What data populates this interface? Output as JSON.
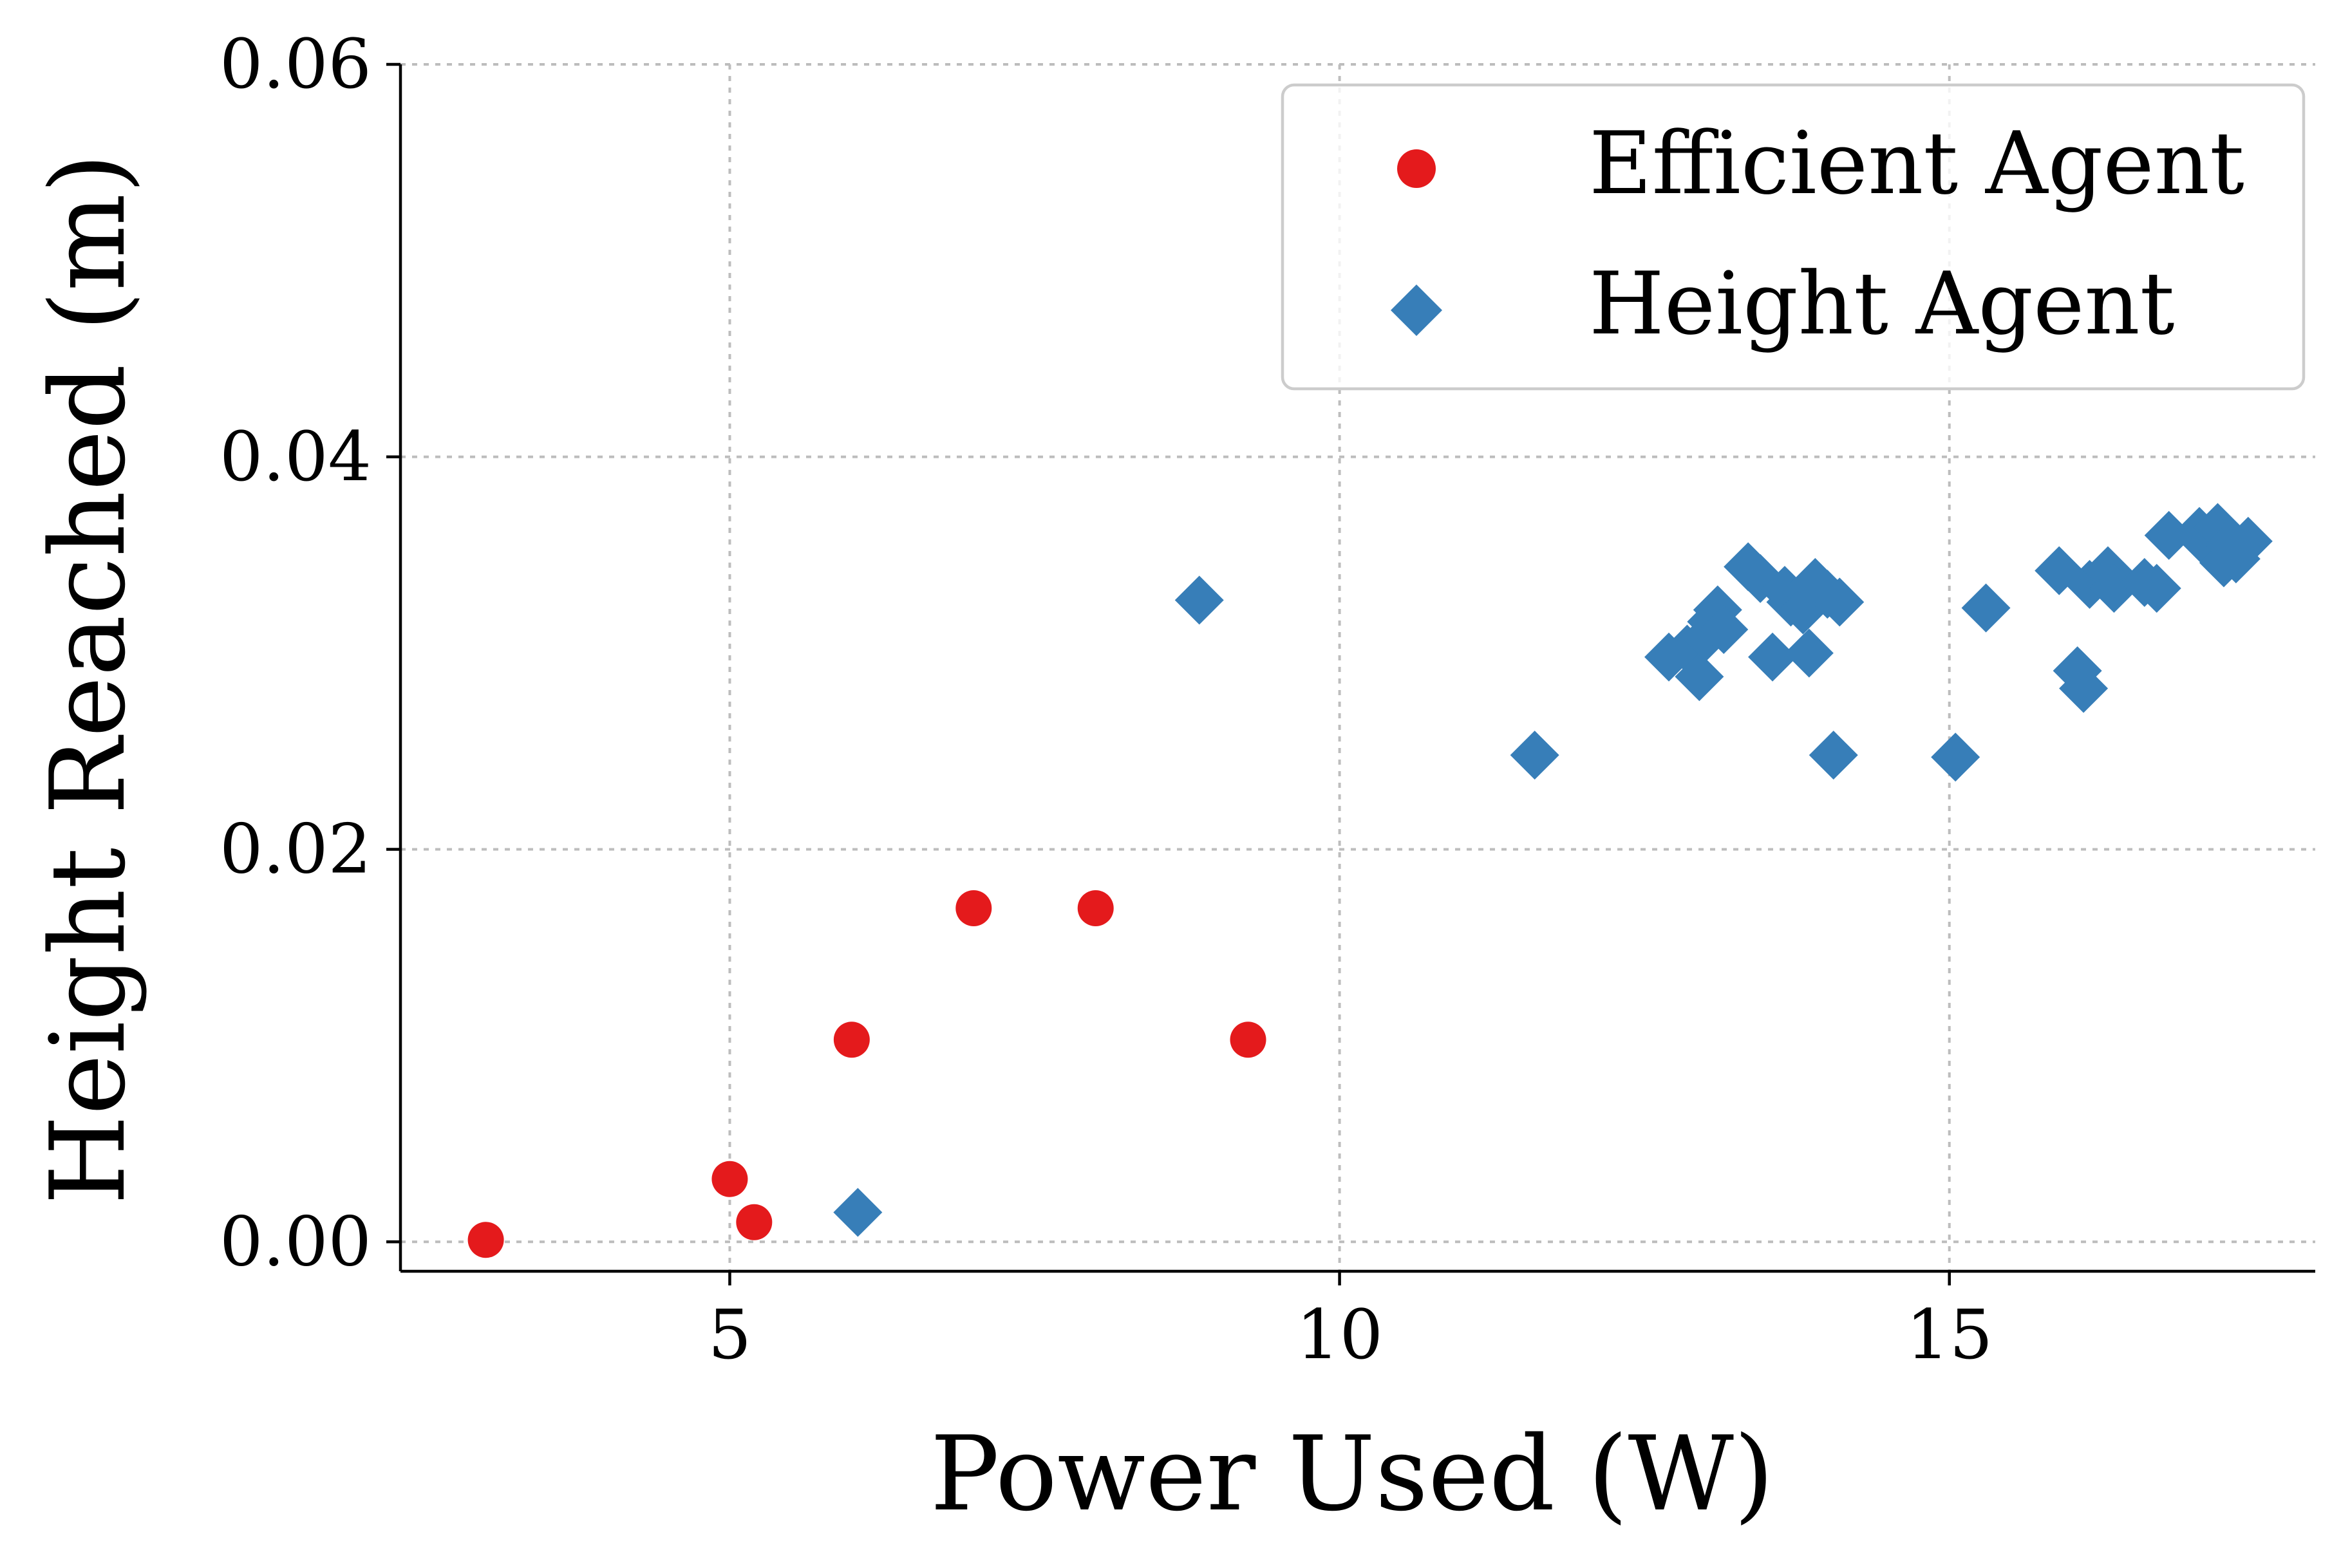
{
  "chart_data": {
    "type": "scatter",
    "title": "",
    "xlabel": "Power Used (W)",
    "ylabel": "Height Reached (m)",
    "xlim": [
      2.3,
      18.0
    ],
    "ylim": [
      -0.0015,
      0.06
    ],
    "xticks": [
      5,
      10,
      15
    ],
    "xtick_labels": [
      "5",
      "10",
      "15"
    ],
    "yticks": [
      0.0,
      0.02,
      0.04,
      0.06
    ],
    "ytick_labels": [
      "0.00",
      "0.02",
      "0.04",
      "0.06"
    ],
    "grid": true,
    "legend_position": "top-right",
    "series": [
      {
        "name": "Efficient Agent",
        "marker": "circle",
        "color": "#e41a1c",
        "points": [
          [
            3.0,
            0.0001
          ],
          [
            5.0,
            0.0032
          ],
          [
            5.2,
            0.001
          ],
          [
            6.0,
            0.0103
          ],
          [
            7.0,
            0.017
          ],
          [
            8.0,
            0.017
          ],
          [
            9.25,
            0.0103
          ]
        ]
      },
      {
        "name": "Height Agent",
        "marker": "diamond",
        "color": "#377eb8",
        "points": [
          [
            6.05,
            0.0015
          ],
          [
            8.85,
            0.0327
          ],
          [
            11.6,
            0.0248
          ],
          [
            12.7,
            0.0298
          ],
          [
            12.85,
            0.0302
          ],
          [
            12.95,
            0.0288
          ],
          [
            13.0,
            0.0308
          ],
          [
            13.05,
            0.0316
          ],
          [
            13.1,
            0.0322
          ],
          [
            13.15,
            0.0312
          ],
          [
            13.35,
            0.0344
          ],
          [
            13.45,
            0.0338
          ],
          [
            13.55,
            0.0298
          ],
          [
            13.65,
            0.0332
          ],
          [
            13.7,
            0.0326
          ],
          [
            13.8,
            0.0322
          ],
          [
            13.85,
            0.03
          ],
          [
            13.9,
            0.0336
          ],
          [
            14.0,
            0.033
          ],
          [
            14.05,
            0.0248
          ],
          [
            14.1,
            0.0326
          ],
          [
            15.05,
            0.0247
          ],
          [
            15.3,
            0.0323
          ],
          [
            15.9,
            0.0342
          ],
          [
            16.05,
            0.0291
          ],
          [
            16.1,
            0.0282
          ],
          [
            16.15,
            0.0335
          ],
          [
            16.3,
            0.0342
          ],
          [
            16.35,
            0.0333
          ],
          [
            16.6,
            0.0336
          ],
          [
            16.7,
            0.0333
          ],
          [
            16.8,
            0.036
          ],
          [
            17.05,
            0.0362
          ],
          [
            17.1,
            0.0356
          ],
          [
            17.2,
            0.0364
          ],
          [
            17.25,
            0.0346
          ],
          [
            17.3,
            0.0355
          ],
          [
            17.35,
            0.0348
          ],
          [
            17.45,
            0.0357
          ]
        ]
      }
    ]
  }
}
